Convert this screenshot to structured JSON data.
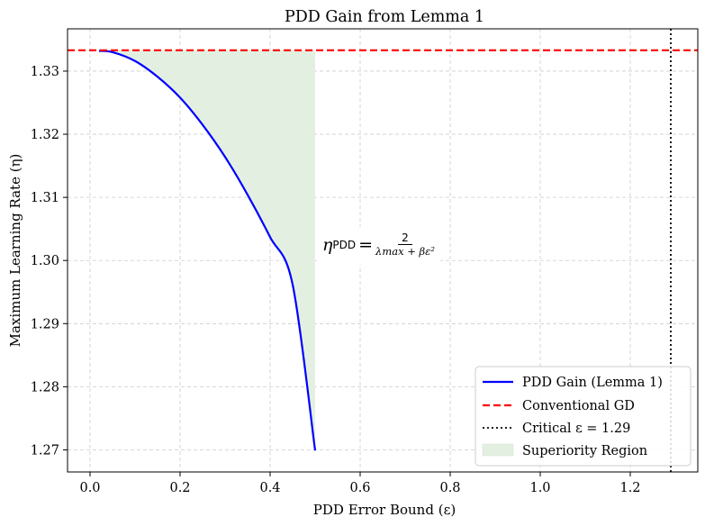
{
  "chart_data": {
    "type": "line",
    "title": "PDD Gain from Lemma 1",
    "xlabel": "PDD Error Bound (ε)",
    "ylabel": "Maximum Learning Rate (η)",
    "xlim": [
      -0.05,
      1.35
    ],
    "ylim": [
      1.2665,
      1.3367
    ],
    "x_ticks": [
      0.0,
      0.2,
      0.4,
      0.6,
      0.8,
      1.0,
      1.2
    ],
    "x_tick_labels": [
      "0.0",
      "0.2",
      "0.4",
      "0.6",
      "0.8",
      "1.0",
      "1.2"
    ],
    "y_ticks": [
      1.27,
      1.28,
      1.29,
      1.3,
      1.31,
      1.32,
      1.33
    ],
    "y_tick_labels": [
      "1.27",
      "1.28",
      "1.29",
      "1.30",
      "1.31",
      "1.32",
      "1.33"
    ],
    "grid": true,
    "legend_position": "lower-right",
    "series": [
      {
        "name": "PDD Gain (Lemma 1)",
        "style": "solid",
        "color": "#0000ff",
        "x": [
          0.02,
          0.05,
          0.1,
          0.15,
          0.2,
          0.25,
          0.3,
          0.35,
          0.4,
          0.45,
          0.5
        ],
        "y": [
          1.3332,
          1.333,
          1.3316,
          1.3291,
          1.3258,
          1.3215,
          1.3164,
          1.3104,
          1.3037,
          1.2962,
          1.2699
        ]
      },
      {
        "name": "Conventional GD",
        "style": "dashed",
        "color": "#ff0000",
        "hline": 1.3333
      },
      {
        "name": "Critical ε = 1.29",
        "style": "dotted",
        "color": "#000000",
        "vline": 1.29
      },
      {
        "name": "Superiority Region",
        "style": "fill",
        "color": "#e3f0e1",
        "x_range": [
          0.02,
          0.5
        ],
        "between": "curve-and-hline"
      }
    ],
    "annotation": {
      "lhs": "η",
      "lhs_sub": "PDD",
      "eq": "=",
      "numerator": "2",
      "denominator": "λmax + βε²",
      "x": 0.5,
      "y": 1.3
    }
  }
}
